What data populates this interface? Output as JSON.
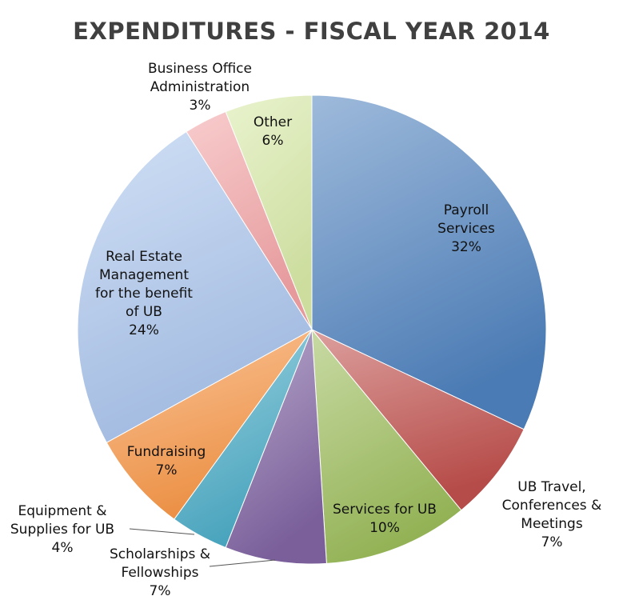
{
  "chart_data": {
    "type": "pie",
    "title": "EXPENDITURES - FISCAL YEAR 2014",
    "slices": [
      {
        "label": [
          "Payroll",
          "Services"
        ],
        "pct_label": "32%",
        "value": 32,
        "color": "#4f81bd"
      },
      {
        "label": [
          "UB Travel,",
          "Conferences &",
          "Meetings"
        ],
        "pct_label": "7%",
        "value": 7,
        "color": "#c0504d"
      },
      {
        "label": [
          "Services for UB"
        ],
        "pct_label": "10%",
        "value": 10,
        "color": "#9bbb59"
      },
      {
        "label": [
          "Scholarships &",
          "Fellowships"
        ],
        "pct_label": "7%",
        "value": 7,
        "color": "#8064a2"
      },
      {
        "label": [
          "Equipment &",
          "Supplies for UB"
        ],
        "pct_label": "4%",
        "value": 4,
        "color": "#4bacc6"
      },
      {
        "label": [
          "Fundraising"
        ],
        "pct_label": "7%",
        "value": 7,
        "color": "#f79646"
      },
      {
        "label": [
          "Real Estate",
          "Management",
          "for the benefit",
          "of UB"
        ],
        "pct_label": "24%",
        "value": 24,
        "color": "#a9c4ec"
      },
      {
        "label": [
          "Business Office",
          "Administration"
        ],
        "pct_label": "3%",
        "value": 3,
        "color": "#f2a2a4"
      },
      {
        "label": [
          "Other"
        ],
        "pct_label": "6%",
        "value": 6,
        "color": "#d7e9a6"
      }
    ],
    "legend": "none"
  }
}
